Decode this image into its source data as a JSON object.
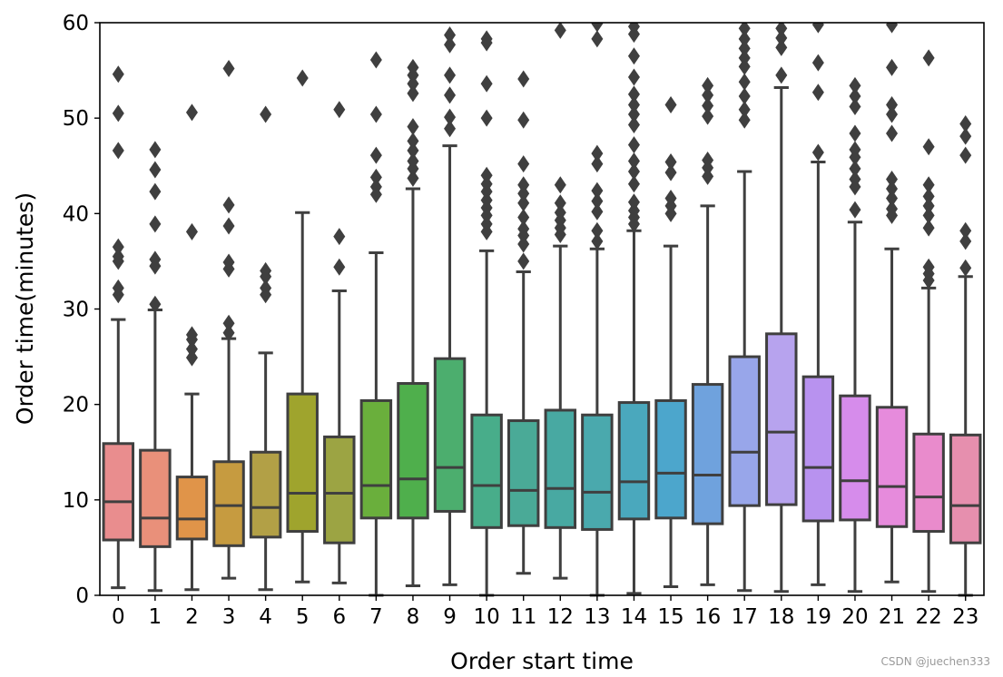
{
  "chart_data": {
    "type": "boxplot",
    "xlabel": "Order start time",
    "ylabel": "Order time(minutes)",
    "ylim": [
      0,
      60
    ],
    "yticks": [
      0,
      10,
      20,
      30,
      40,
      50,
      60
    ],
    "categories": [
      "0",
      "1",
      "2",
      "3",
      "4",
      "5",
      "6",
      "7",
      "8",
      "9",
      "10",
      "11",
      "12",
      "13",
      "14",
      "15",
      "16",
      "17",
      "18",
      "19",
      "20",
      "21",
      "22",
      "23"
    ],
    "colors": [
      "#e98d8e",
      "#e9907a",
      "#e09449",
      "#c69b40",
      "#b2a046",
      "#9fa42d",
      "#9ca443",
      "#6aaf3c",
      "#4faf4c",
      "#4cae6e",
      "#48ad8a",
      "#4aaa97",
      "#48a9a2",
      "#4aa9ad",
      "#4aa8bd",
      "#4ca6cc",
      "#6fa2dd",
      "#98a6ea",
      "#b7a3ee",
      "#b892ef",
      "#d68ceb",
      "#e68bdc",
      "#e98bcc",
      "#e68fae"
    ],
    "boxes": [
      {
        "q1": 5.8,
        "median": 9.8,
        "q3": 15.9,
        "whislo": 0.8,
        "whishi": 28.9,
        "fliers": [
          31.5,
          32.2,
          35.0,
          35.5,
          36.5,
          46.6,
          50.5,
          54.6
        ]
      },
      {
        "q1": 5.1,
        "median": 8.1,
        "q3": 15.2,
        "whislo": 0.5,
        "whishi": 29.9,
        "fliers": [
          30.5,
          34.5,
          35.2,
          38.9,
          42.3,
          44.6,
          46.7
        ]
      },
      {
        "q1": 5.9,
        "median": 8.0,
        "q3": 12.4,
        "whislo": 0.6,
        "whishi": 21.1,
        "fliers": [
          24.9,
          25.8,
          26.8,
          27.3,
          38.1,
          50.6
        ]
      },
      {
        "q1": 5.2,
        "median": 9.4,
        "q3": 14.0,
        "whislo": 1.8,
        "whishi": 26.9,
        "fliers": [
          27.5,
          28.5,
          34.2,
          34.9,
          38.7,
          40.9,
          55.2
        ]
      },
      {
        "q1": 6.1,
        "median": 9.2,
        "q3": 15.0,
        "whislo": 0.6,
        "whishi": 25.4,
        "fliers": [
          31.5,
          32.2,
          33.4,
          34.0,
          50.4
        ]
      },
      {
        "q1": 6.7,
        "median": 10.7,
        "q3": 21.1,
        "whislo": 1.4,
        "whishi": 40.1,
        "fliers": [
          54.2
        ]
      },
      {
        "q1": 5.5,
        "median": 10.7,
        "q3": 16.6,
        "whislo": 1.3,
        "whishi": 31.9,
        "fliers": [
          34.4,
          37.6,
          50.9
        ]
      },
      {
        "q1": 8.1,
        "median": 11.5,
        "q3": 20.4,
        "whislo": 0.0,
        "whishi": 35.9,
        "fliers": [
          42.0,
          42.8,
          43.8,
          46.1,
          50.4,
          56.1
        ]
      },
      {
        "q1": 8.1,
        "median": 12.2,
        "q3": 22.2,
        "whislo": 1.0,
        "whishi": 42.6,
        "fliers": [
          43.7,
          44.7,
          45.5,
          46.6,
          47.6,
          49.1,
          52.6,
          53.6,
          54.5,
          55.3
        ]
      },
      {
        "q1": 8.8,
        "median": 13.4,
        "q3": 24.8,
        "whislo": 1.1,
        "whishi": 47.1,
        "fliers": [
          48.9,
          50.1,
          52.4,
          54.5,
          57.7,
          58.7
        ]
      },
      {
        "q1": 7.1,
        "median": 11.5,
        "q3": 18.9,
        "whislo": 0.0,
        "whishi": 36.1,
        "fliers": [
          38.1,
          38.9,
          39.8,
          40.6,
          41.4,
          42.3,
          43.1,
          44.0,
          50.0,
          53.6,
          57.9,
          58.3
        ]
      },
      {
        "q1": 7.3,
        "median": 11.0,
        "q3": 18.3,
        "whislo": 2.3,
        "whishi": 33.9,
        "fliers": [
          35.0,
          36.8,
          37.7,
          38.4,
          39.6,
          41.1,
          42.1,
          43.0,
          45.2,
          49.8,
          54.1
        ]
      },
      {
        "q1": 7.1,
        "median": 11.2,
        "q3": 19.4,
        "whislo": 1.8,
        "whishi": 36.6,
        "fliers": [
          37.8,
          38.5,
          39.3,
          40.1,
          41.1,
          43.0,
          59.2
        ]
      },
      {
        "q1": 6.9,
        "median": 10.8,
        "q3": 18.9,
        "whislo": 0.0,
        "whishi": 36.3,
        "fliers": [
          37.1,
          38.2,
          40.2,
          41.3,
          42.4,
          45.2,
          46.3,
          58.3,
          59.9
        ]
      },
      {
        "q1": 8.0,
        "median": 11.9,
        "q3": 20.2,
        "whislo": 0.2,
        "whishi": 38.2,
        "fliers": [
          38.9,
          39.6,
          40.3,
          41.2,
          43.1,
          44.4,
          45.5,
          47.2,
          49.3,
          50.4,
          51.4,
          52.5,
          54.3,
          56.5,
          58.8,
          59.6
        ]
      },
      {
        "q1": 8.1,
        "median": 12.8,
        "q3": 20.4,
        "whislo": 0.9,
        "whishi": 36.6,
        "fliers": [
          40.0,
          40.8,
          41.6,
          44.3,
          45.4,
          51.4
        ]
      },
      {
        "q1": 7.5,
        "median": 12.6,
        "q3": 22.1,
        "whislo": 1.1,
        "whishi": 40.8,
        "fliers": [
          43.9,
          44.8,
          45.6,
          50.2,
          51.3,
          52.4,
          53.4
        ]
      },
      {
        "q1": 9.4,
        "median": 15.0,
        "q3": 25.0,
        "whislo": 0.5,
        "whishi": 44.4,
        "fliers": [
          49.8,
          50.9,
          52.3,
          53.8,
          55.4,
          56.3,
          57.3,
          58.3,
          59.4
        ]
      },
      {
        "q1": 9.5,
        "median": 17.1,
        "q3": 27.4,
        "whislo": 0.4,
        "whishi": 53.2,
        "fliers": [
          54.5,
          57.4,
          58.4,
          59.4
        ]
      },
      {
        "q1": 7.8,
        "median": 13.4,
        "q3": 22.9,
        "whislo": 1.1,
        "whishi": 45.4,
        "fliers": [
          46.4,
          52.7,
          55.8,
          59.8
        ]
      },
      {
        "q1": 7.9,
        "median": 12.0,
        "q3": 20.9,
        "whislo": 0.4,
        "whishi": 39.1,
        "fliers": [
          40.4,
          42.8,
          43.6,
          44.7,
          45.9,
          46.7,
          48.4,
          51.2,
          52.3,
          53.4
        ]
      },
      {
        "q1": 7.2,
        "median": 11.4,
        "q3": 19.7,
        "whislo": 1.4,
        "whishi": 36.3,
        "fliers": [
          39.8,
          40.5,
          41.6,
          42.6,
          43.6,
          48.4,
          50.4,
          51.4,
          55.3,
          59.8
        ]
      },
      {
        "q1": 6.7,
        "median": 10.3,
        "q3": 16.9,
        "whislo": 0.4,
        "whishi": 32.2,
        "fliers": [
          33.0,
          33.7,
          34.4,
          38.5,
          39.8,
          40.8,
          41.8,
          43.0,
          47.0,
          56.3
        ]
      },
      {
        "q1": 5.5,
        "median": 9.4,
        "q3": 16.8,
        "whislo": 0.0,
        "whishi": 33.4,
        "fliers": [
          34.3,
          37.1,
          38.2,
          46.1,
          48.1,
          49.4
        ]
      }
    ]
  },
  "watermark": "CSDN @juechen333"
}
